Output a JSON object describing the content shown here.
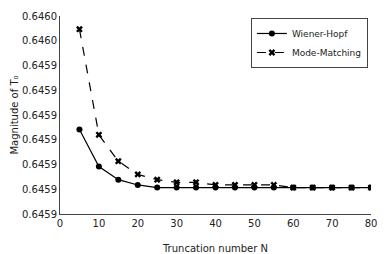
{
  "chart_data": {
    "type": "line",
    "x_label": "Truncation number N",
    "y_label": "Magnitude of T₀",
    "xlim": [
      0,
      80
    ],
    "ylim": [
      0.64589,
      0.645965
    ],
    "xticks": [
      0,
      10,
      20,
      30,
      40,
      50,
      60,
      70,
      80
    ],
    "yticks": [
      {
        "value": 0.64589,
        "label": "0.6459"
      },
      {
        "value": 0.645899375,
        "label": "0.6459"
      },
      {
        "value": 0.64590875,
        "label": "0.6459"
      },
      {
        "value": 0.645918125,
        "label": "0.6459"
      },
      {
        "value": 0.6459275,
        "label": "0.6459"
      },
      {
        "value": 0.645936875,
        "label": "0.6459"
      },
      {
        "value": 0.64594625,
        "label": "0.6459"
      },
      {
        "value": 0.645955625,
        "label": "0.6460"
      },
      {
        "value": 0.645965,
        "label": "0.6460"
      }
    ],
    "grid": false,
    "legend": "upper right",
    "series": [
      {
        "name": "Wiener-Hopf",
        "color": "#000000",
        "marker": "circle",
        "line_style": "solid",
        "x": [
          5,
          10,
          15,
          20,
          25,
          30,
          35,
          40,
          45,
          50,
          55,
          60,
          65,
          70,
          75,
          80
        ],
        "values": [
          0.645922,
          0.645908,
          0.645903,
          0.645901,
          0.6459,
          0.6459,
          0.6459,
          0.6459,
          0.6459,
          0.6459,
          0.6459,
          0.6459,
          0.6459,
          0.6459,
          0.6459,
          0.6459
        ]
      },
      {
        "name": "Mode-Matching",
        "color": "#000000",
        "marker": "x",
        "line_style": "dashed",
        "x": [
          5,
          10,
          15,
          20,
          25,
          30,
          35,
          40,
          45,
          50,
          55,
          60,
          65,
          70,
          75,
          80
        ],
        "values": [
          0.64596,
          0.64592,
          0.64591,
          0.645905,
          0.645903,
          0.645902,
          0.645902,
          0.645901,
          0.645901,
          0.645901,
          0.645901,
          0.6459,
          0.6459,
          0.6459,
          0.6459,
          0.6459
        ]
      }
    ]
  }
}
